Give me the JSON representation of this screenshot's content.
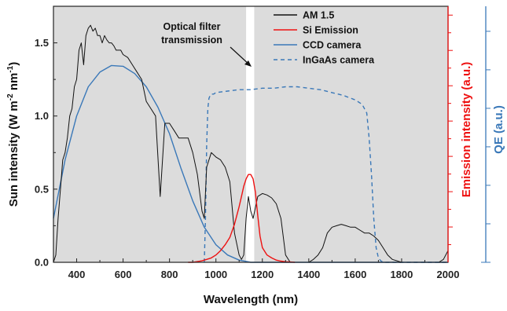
{
  "chart_data": {
    "type": "line",
    "xlabel": "Wavelength (nm)",
    "ylabel_left": "Sun intensity (W m",
    "ylabel_left_sup1": "-2",
    "ylabel_left_mid": " nm",
    "ylabel_left_sup2": "-1",
    "ylabel_left_end": ")",
    "ylabel_right1": "Emission intensity (a.u.)",
    "ylabel_right2": "QE (a.u.)",
    "xlim": [
      300,
      2000
    ],
    "ylim": [
      0,
      1.75
    ],
    "x_ticks": [
      "400",
      "600",
      "800",
      "1000",
      "1200",
      "1400",
      "1600",
      "1800",
      "2000"
    ],
    "y_ticks": [
      "0.0",
      "0.5",
      "1.0",
      "1.5"
    ],
    "filter_window": [
      1130,
      1165
    ],
    "annotation": [
      "Optical filter",
      "transmission"
    ],
    "legend_position": "top-right",
    "colors": {
      "am15": "#111111",
      "si": "#ee1111",
      "ccd": "#3a78b8",
      "ingaas": "#3a78b8",
      "right_axis1": "#ee1111",
      "right_axis2": "#3a78b8",
      "plot_bg": "#dcdcdc"
    },
    "series": [
      {
        "name": "AM 1.5",
        "style": "solid",
        "color": "#111111",
        "x": [
          300,
          310,
          320,
          330,
          340,
          350,
          360,
          370,
          380,
          390,
          400,
          410,
          420,
          430,
          440,
          450,
          460,
          470,
          480,
          490,
          500,
          510,
          520,
          530,
          540,
          550,
          560,
          570,
          580,
          590,
          600,
          620,
          640,
          660,
          680,
          700,
          720,
          740,
          760,
          780,
          800,
          820,
          840,
          860,
          880,
          900,
          920,
          940,
          950,
          960,
          980,
          1000,
          1020,
          1040,
          1060,
          1080,
          1100,
          1110,
          1120,
          1130,
          1140,
          1150,
          1160,
          1180,
          1200,
          1220,
          1240,
          1260,
          1280,
          1300,
          1320,
          1340,
          1360,
          1380,
          1400,
          1420,
          1440,
          1460,
          1480,
          1500,
          1520,
          1540,
          1560,
          1580,
          1600,
          1620,
          1640,
          1660,
          1680,
          1700,
          1720,
          1740,
          1760,
          1780,
          1800,
          1820,
          1840,
          1860,
          1880,
          1900,
          1920,
          1940,
          1960,
          1980,
          2000
        ],
        "y": [
          0.0,
          0.05,
          0.3,
          0.5,
          0.7,
          0.75,
          0.85,
          1.0,
          1.05,
          1.2,
          1.25,
          1.45,
          1.5,
          1.35,
          1.55,
          1.6,
          1.62,
          1.58,
          1.6,
          1.55,
          1.55,
          1.5,
          1.55,
          1.52,
          1.5,
          1.5,
          1.48,
          1.45,
          1.45,
          1.45,
          1.42,
          1.4,
          1.35,
          1.3,
          1.25,
          1.1,
          1.05,
          1.0,
          0.45,
          0.95,
          0.95,
          0.9,
          0.85,
          0.85,
          0.85,
          0.75,
          0.6,
          0.35,
          0.3,
          0.65,
          0.75,
          0.72,
          0.7,
          0.65,
          0.55,
          0.2,
          0.05,
          0.02,
          0.05,
          0.3,
          0.45,
          0.35,
          0.3,
          0.45,
          0.47,
          0.46,
          0.44,
          0.4,
          0.3,
          0.05,
          0.0,
          0.0,
          0.0,
          0.0,
          0.0,
          0.02,
          0.05,
          0.1,
          0.2,
          0.24,
          0.25,
          0.26,
          0.25,
          0.24,
          0.24,
          0.22,
          0.2,
          0.2,
          0.18,
          0.15,
          0.1,
          0.05,
          0.02,
          0.01,
          0.0,
          0.0,
          0.0,
          0.0,
          0.0,
          0.0,
          0.0,
          0.0,
          0.0,
          0.02,
          0.08
        ]
      },
      {
        "name": "Si Emission",
        "style": "solid",
        "color": "#ee1111",
        "x": [
          880,
          900,
          920,
          940,
          960,
          980,
          1000,
          1020,
          1040,
          1060,
          1080,
          1100,
          1110,
          1120,
          1130,
          1140,
          1150,
          1160,
          1170,
          1180,
          1190,
          1200,
          1220,
          1240,
          1260,
          1280,
          1300,
          1320,
          1340
        ],
        "y": [
          0.0,
          0.0,
          0.005,
          0.01,
          0.02,
          0.03,
          0.05,
          0.08,
          0.12,
          0.17,
          0.26,
          0.38,
          0.45,
          0.52,
          0.57,
          0.6,
          0.6,
          0.57,
          0.48,
          0.32,
          0.18,
          0.1,
          0.05,
          0.03,
          0.015,
          0.008,
          0.004,
          0.002,
          0.0
        ]
      },
      {
        "name": "CCD camera",
        "style": "solid",
        "color": "#3a78b8",
        "x": [
          300,
          350,
          400,
          450,
          500,
          550,
          600,
          650,
          700,
          750,
          800,
          850,
          900,
          950,
          1000,
          1050,
          1100,
          1150,
          1200,
          1300,
          1400,
          1500,
          1600,
          1700,
          1800,
          1900,
          2000
        ],
        "y": [
          0.3,
          0.7,
          1.0,
          1.2,
          1.3,
          1.345,
          1.34,
          1.29,
          1.2,
          1.06,
          0.88,
          0.64,
          0.42,
          0.24,
          0.12,
          0.05,
          0.015,
          0.0,
          0.0,
          0.0,
          0.0,
          0.0,
          0.0,
          0.0,
          0.0,
          0.0,
          0.0
        ]
      },
      {
        "name": "InGaAs camera",
        "style": "dashed",
        "color": "#3a78b8",
        "x": [
          950,
          955,
          960,
          965,
          970,
          975,
          980,
          990,
          1000,
          1050,
          1100,
          1150,
          1200,
          1250,
          1300,
          1350,
          1400,
          1450,
          1500,
          1550,
          1600,
          1630,
          1650,
          1660,
          1670,
          1680,
          1690,
          1700,
          1710,
          1720,
          1740,
          1760,
          1780,
          1800,
          1850,
          1900,
          1950,
          2000
        ],
        "y": [
          0.0,
          0.3,
          0.8,
          1.05,
          1.12,
          1.14,
          1.15,
          1.15,
          1.16,
          1.17,
          1.18,
          1.18,
          1.19,
          1.19,
          1.2,
          1.2,
          1.19,
          1.18,
          1.16,
          1.14,
          1.11,
          1.08,
          1.02,
          0.85,
          0.6,
          0.3,
          0.1,
          0.03,
          0.01,
          0.0,
          0.0,
          0.0,
          0.0,
          0.0,
          0.0,
          0.0,
          0.0,
          0.0
        ]
      }
    ]
  }
}
